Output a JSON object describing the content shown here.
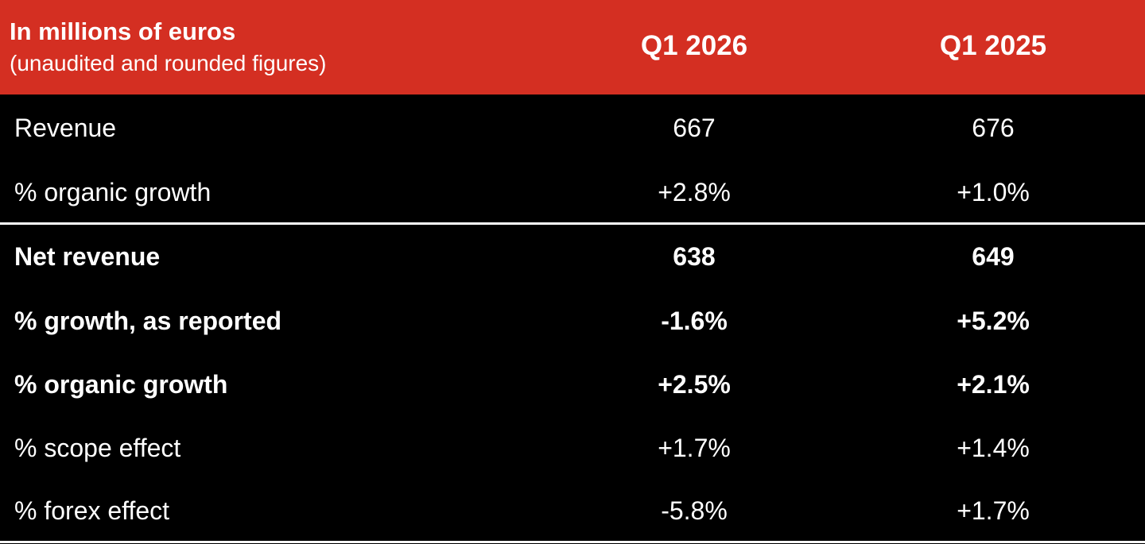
{
  "header": {
    "title": "In millions of euros",
    "subtitle": "(unaudited and rounded figures)",
    "columns": [
      "Q1 2026",
      "Q1 2025"
    ]
  },
  "rows": [
    {
      "label": "Revenue",
      "values": [
        "667",
        "676"
      ],
      "bold": false
    },
    {
      "label": "% organic growth",
      "values": [
        "+2.8%",
        "+1.0%"
      ],
      "bold": false
    },
    {
      "label": "Net revenue",
      "values": [
        "638",
        "649"
      ],
      "bold": true
    },
    {
      "label": "% growth, as reported",
      "values": [
        "-1.6%",
        "+5.2%"
      ],
      "bold": true
    },
    {
      "label": "% organic growth",
      "values": [
        "+2.5%",
        "+2.1%"
      ],
      "bold": true
    },
    {
      "label": "% scope effect",
      "values": [
        "+1.7%",
        "+1.4%"
      ],
      "bold": false
    },
    {
      "label": "% forex effect",
      "values": [
        "-5.8%",
        "+1.7%"
      ],
      "bold": false
    }
  ],
  "colors": {
    "header_bg": "#d42f22",
    "body_bg": "#000000",
    "text": "#ffffff"
  }
}
